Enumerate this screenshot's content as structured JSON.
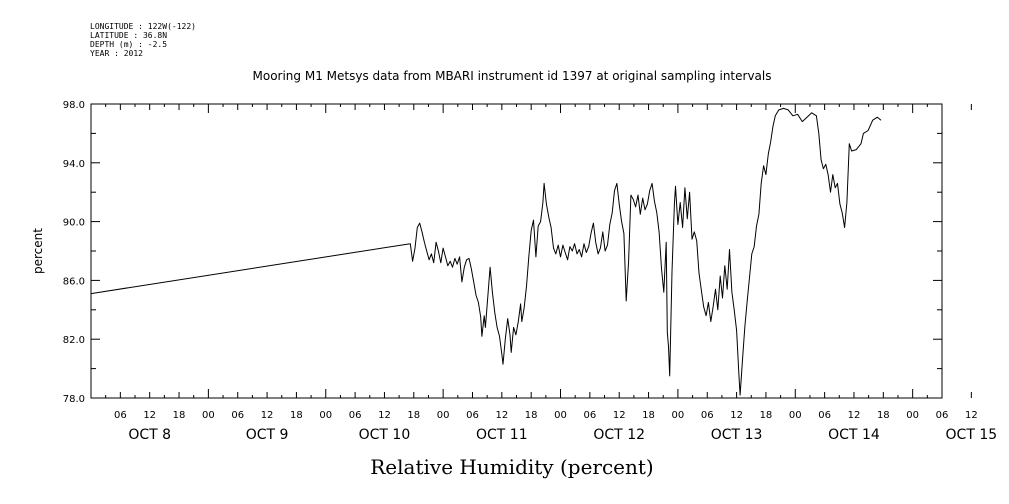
{
  "metadata": {
    "longitude": "LONGITUDE : 122W(-122)",
    "latitude": "LATITUDE : 36.8N",
    "depth": "DEPTH (m) : -2.5",
    "year": "YEAR : 2012"
  },
  "chart_data": {
    "type": "line",
    "title": "Mooring M1 Metsys data from MBARI instrument id 1397 at original sampling intervals",
    "xlabel": "Relative Humidity (percent)",
    "ylabel": "percent",
    "ylim": [
      78.0,
      98.0
    ],
    "yticks": [
      "78.0",
      "82.0",
      "86.0",
      "90.0",
      "94.0",
      "98.0"
    ],
    "xlim": [
      1.0,
      8.25
    ],
    "x_unit": "days since Oct 7 00:00 (Oct 2012)",
    "hour_ticks": [
      "06",
      "12",
      "18",
      "00",
      "06",
      "12",
      "18",
      "00",
      "06",
      "12",
      "18",
      "00",
      "06",
      "12",
      "18",
      "00",
      "06",
      "12",
      "18",
      "00",
      "06",
      "12",
      "18",
      "00",
      "06",
      "12",
      "18",
      "00",
      "06",
      "12"
    ],
    "day_labels": [
      "OCT  8",
      "OCT  9",
      "OCT 10",
      "OCT 11",
      "OCT 12",
      "OCT 13",
      "OCT 14",
      "OCT 15"
    ],
    "grid": false,
    "series": [
      {
        "color": "#000000",
        "points": [
          [
            1.0,
            85.1
          ],
          [
            3.72,
            88.5
          ],
          [
            3.74,
            87.3
          ],
          [
            3.76,
            88.2
          ],
          [
            3.78,
            89.6
          ],
          [
            3.8,
            89.9
          ],
          [
            3.82,
            89.3
          ],
          [
            3.84,
            88.6
          ],
          [
            3.86,
            88.0
          ],
          [
            3.88,
            87.4
          ],
          [
            3.9,
            87.8
          ],
          [
            3.92,
            87.2
          ],
          [
            3.94,
            88.6
          ],
          [
            3.96,
            88.0
          ],
          [
            3.98,
            87.2
          ],
          [
            4.0,
            88.2
          ],
          [
            4.02,
            87.6
          ],
          [
            4.04,
            87.0
          ],
          [
            4.06,
            87.3
          ],
          [
            4.08,
            86.9
          ],
          [
            4.1,
            87.5
          ],
          [
            4.12,
            87.1
          ],
          [
            4.14,
            87.6
          ],
          [
            4.16,
            85.9
          ],
          [
            4.18,
            86.9
          ],
          [
            4.2,
            87.4
          ],
          [
            4.22,
            87.5
          ],
          [
            4.24,
            86.8
          ],
          [
            4.26,
            85.9
          ],
          [
            4.28,
            85.0
          ],
          [
            4.3,
            84.5
          ],
          [
            4.32,
            83.5
          ],
          [
            4.33,
            82.2
          ],
          [
            4.35,
            83.6
          ],
          [
            4.36,
            82.8
          ],
          [
            4.38,
            84.8
          ],
          [
            4.4,
            86.9
          ],
          [
            4.42,
            85.2
          ],
          [
            4.44,
            83.8
          ],
          [
            4.46,
            82.8
          ],
          [
            4.48,
            82.2
          ],
          [
            4.5,
            81.0
          ],
          [
            4.51,
            80.3
          ],
          [
            4.53,
            82.0
          ],
          [
            4.55,
            83.4
          ],
          [
            4.57,
            82.3
          ],
          [
            4.58,
            81.1
          ],
          [
            4.6,
            82.8
          ],
          [
            4.62,
            82.3
          ],
          [
            4.64,
            83.2
          ],
          [
            4.66,
            84.4
          ],
          [
            4.67,
            83.2
          ],
          [
            4.69,
            84.1
          ],
          [
            4.71,
            85.6
          ],
          [
            4.73,
            87.6
          ],
          [
            4.75,
            89.4
          ],
          [
            4.77,
            90.1
          ],
          [
            4.79,
            87.6
          ],
          [
            4.81,
            89.7
          ],
          [
            4.83,
            90.0
          ],
          [
            4.85,
            91.3
          ],
          [
            4.86,
            92.6
          ],
          [
            4.88,
            91.2
          ],
          [
            4.9,
            90.3
          ],
          [
            4.92,
            89.6
          ],
          [
            4.94,
            88.2
          ],
          [
            4.96,
            87.8
          ],
          [
            4.98,
            88.4
          ],
          [
            5.0,
            87.6
          ],
          [
            5.02,
            88.4
          ],
          [
            5.04,
            87.9
          ],
          [
            5.06,
            87.4
          ],
          [
            5.08,
            88.3
          ],
          [
            5.1,
            88.0
          ],
          [
            5.12,
            88.5
          ],
          [
            5.14,
            87.8
          ],
          [
            5.16,
            88.1
          ],
          [
            5.18,
            87.6
          ],
          [
            5.2,
            88.5
          ],
          [
            5.22,
            87.9
          ],
          [
            5.24,
            88.3
          ],
          [
            5.26,
            89.2
          ],
          [
            5.28,
            89.9
          ],
          [
            5.3,
            88.6
          ],
          [
            5.32,
            87.8
          ],
          [
            5.34,
            88.2
          ],
          [
            5.36,
            89.3
          ],
          [
            5.38,
            88.0
          ],
          [
            5.4,
            88.4
          ],
          [
            5.42,
            89.8
          ],
          [
            5.44,
            90.6
          ],
          [
            5.46,
            92.1
          ],
          [
            5.48,
            92.6
          ],
          [
            5.5,
            91.2
          ],
          [
            5.52,
            90.0
          ],
          [
            5.54,
            89.2
          ],
          [
            5.56,
            84.6
          ],
          [
            5.58,
            87.3
          ],
          [
            5.6,
            91.8
          ],
          [
            5.62,
            91.5
          ],
          [
            5.64,
            91.0
          ],
          [
            5.66,
            91.8
          ],
          [
            5.68,
            90.5
          ],
          [
            5.7,
            91.6
          ],
          [
            5.72,
            90.8
          ],
          [
            5.74,
            91.2
          ],
          [
            5.76,
            92.1
          ],
          [
            5.78,
            92.6
          ],
          [
            5.8,
            91.4
          ],
          [
            5.82,
            90.6
          ],
          [
            5.84,
            89.3
          ],
          [
            5.86,
            86.8
          ],
          [
            5.88,
            85.2
          ],
          [
            5.9,
            88.6
          ],
          [
            5.91,
            82.5
          ],
          [
            5.92,
            81.5
          ],
          [
            5.93,
            79.5
          ],
          [
            5.95,
            86.6
          ],
          [
            5.97,
            91.2
          ],
          [
            5.98,
            92.4
          ],
          [
            6.0,
            89.8
          ],
          [
            6.02,
            91.3
          ],
          [
            6.04,
            89.6
          ],
          [
            6.06,
            92.3
          ],
          [
            6.08,
            90.2
          ],
          [
            6.1,
            92.0
          ],
          [
            6.12,
            88.8
          ],
          [
            6.14,
            89.3
          ],
          [
            6.16,
            88.7
          ],
          [
            6.18,
            86.5
          ],
          [
            6.2,
            85.3
          ],
          [
            6.22,
            84.2
          ],
          [
            6.24,
            83.6
          ],
          [
            6.26,
            84.5
          ],
          [
            6.28,
            83.2
          ],
          [
            6.3,
            84.2
          ],
          [
            6.32,
            85.4
          ],
          [
            6.34,
            84.0
          ],
          [
            6.36,
            86.3
          ],
          [
            6.38,
            84.8
          ],
          [
            6.4,
            87.0
          ],
          [
            6.42,
            85.4
          ],
          [
            6.44,
            88.1
          ],
          [
            6.46,
            85.2
          ],
          [
            6.48,
            84.0
          ],
          [
            6.5,
            82.6
          ],
          [
            6.52,
            79.6
          ],
          [
            6.53,
            78.2
          ],
          [
            6.55,
            80.6
          ],
          [
            6.57,
            82.8
          ],
          [
            6.59,
            84.6
          ],
          [
            6.61,
            86.2
          ],
          [
            6.63,
            87.8
          ],
          [
            6.65,
            88.3
          ],
          [
            6.67,
            89.7
          ],
          [
            6.69,
            90.5
          ],
          [
            6.71,
            92.6
          ],
          [
            6.73,
            93.8
          ],
          [
            6.75,
            93.2
          ],
          [
            6.77,
            94.6
          ],
          [
            6.79,
            95.4
          ],
          [
            6.81,
            96.5
          ],
          [
            6.83,
            97.2
          ],
          [
            6.86,
            97.6
          ],
          [
            6.9,
            97.7
          ],
          [
            6.94,
            97.6
          ],
          [
            6.98,
            97.2
          ],
          [
            7.02,
            97.3
          ],
          [
            7.06,
            96.8
          ],
          [
            7.1,
            97.1
          ],
          [
            7.14,
            97.4
          ],
          [
            7.18,
            97.2
          ],
          [
            7.2,
            96.0
          ],
          [
            7.22,
            94.2
          ],
          [
            7.24,
            93.6
          ],
          [
            7.26,
            93.9
          ],
          [
            7.28,
            93.2
          ],
          [
            7.3,
            92.0
          ],
          [
            7.32,
            93.2
          ],
          [
            7.34,
            92.3
          ],
          [
            7.36,
            92.6
          ],
          [
            7.38,
            91.2
          ],
          [
            7.4,
            90.6
          ],
          [
            7.42,
            89.6
          ],
          [
            7.44,
            91.3
          ],
          [
            7.46,
            95.3
          ],
          [
            7.48,
            94.8
          ],
          [
            7.52,
            94.9
          ],
          [
            7.56,
            95.3
          ],
          [
            7.58,
            96.0
          ],
          [
            7.62,
            96.2
          ],
          [
            7.66,
            96.9
          ],
          [
            7.7,
            97.1
          ],
          [
            7.73,
            96.9
          ]
        ]
      }
    ]
  }
}
